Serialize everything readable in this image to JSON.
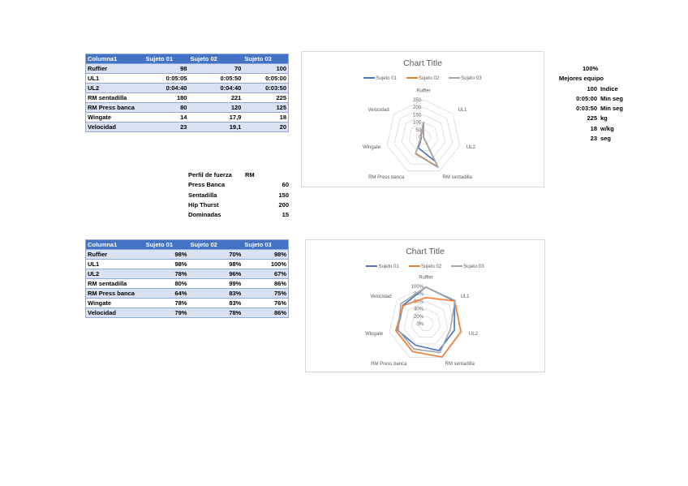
{
  "table1": {
    "headers": [
      "Columna1",
      "Sujeto 01",
      "Sujeto 02",
      "Sujeto 03"
    ],
    "rows": [
      [
        "Ruffier",
        "98",
        "70",
        "100"
      ],
      [
        "UL1",
        "0:05:05",
        "0:05:50",
        "0:05:00"
      ],
      [
        "UL2",
        "0:04:40",
        "0:04:40",
        "0:03:50"
      ],
      [
        "RM sentadilla",
        "180",
        "221",
        "225"
      ],
      [
        "RM Press banca",
        "80",
        "120",
        "125"
      ],
      [
        "Wingate",
        "14",
        "17,9",
        "18"
      ],
      [
        "Velocidad",
        "23",
        "19,1",
        "20"
      ]
    ]
  },
  "table2": {
    "headers": [
      "Columna1",
      "Sujeto 01",
      "Sujeto 02",
      "Sujeto 03"
    ],
    "rows": [
      [
        "Ruffier",
        "98%",
        "70%",
        "98%"
      ],
      [
        "UL1",
        "98%",
        "98%",
        "100%"
      ],
      [
        "UL2",
        "78%",
        "96%",
        "67%"
      ],
      [
        "RM sentadilla",
        "80%",
        "99%",
        "86%"
      ],
      [
        "RM Press banca",
        "64%",
        "83%",
        "75%"
      ],
      [
        "Wingate",
        "78%",
        "83%",
        "76%"
      ],
      [
        "Velocidad",
        "79%",
        "78%",
        "86%"
      ]
    ]
  },
  "perfil": {
    "header": "Perfil de fuerza",
    "header_rm": "RM",
    "rows": [
      [
        "Press Banca",
        "60"
      ],
      [
        "Sentadilla",
        "150"
      ],
      [
        "Hip Thurst",
        "200"
      ],
      [
        "Dominadas",
        "15"
      ]
    ]
  },
  "best": {
    "pct": "100%",
    "title": "Mejores equipo",
    "rows": [
      [
        "100",
        "Indice"
      ],
      [
        "0:05:00",
        "Min seg"
      ],
      [
        "0:03:50",
        "Min seg"
      ],
      [
        "225",
        "kg"
      ],
      [
        "18",
        "w/kg"
      ],
      [
        "23",
        "seg"
      ]
    ]
  },
  "chart_data": [
    {
      "type": "radar",
      "title": "Chart Title",
      "categories": [
        "Ruffier",
        "UL1",
        "UL2",
        "RM sentadilla",
        "RM Press banca",
        "Wingate",
        "Velocidad"
      ],
      "ticks": [
        "0",
        "50",
        "100",
        "150",
        "200",
        "250"
      ],
      "rmax": 250,
      "legend": "top",
      "series": [
        {
          "name": "Sujeto 01",
          "color": "#4472c4",
          "values": [
            98,
            0.0035,
            0.0032,
            180,
            80,
            14,
            23
          ]
        },
        {
          "name": "Sujeto 02",
          "color": "#ed7d31",
          "values": [
            70,
            0.004,
            0.0032,
            221,
            120,
            17.9,
            19.1
          ]
        },
        {
          "name": "Sujeto 03",
          "color": "#a5a5a5",
          "values": [
            100,
            0.0035,
            0.0027,
            225,
            125,
            18,
            20
          ]
        }
      ]
    },
    {
      "type": "radar",
      "title": "Chart Title",
      "categories": [
        "Ruffier",
        "UL1",
        "UL2",
        "RM sentadilla",
        "RM Press banca",
        "Wingate",
        "Velocidad"
      ],
      "ticks": [
        "0%",
        "20%",
        "40%",
        "60%",
        "80%",
        "100%"
      ],
      "rmax": 100,
      "legend": "top",
      "series": [
        {
          "name": "Sujeto 01",
          "color": "#4472c4",
          "values": [
            98,
            98,
            78,
            80,
            64,
            78,
            79
          ]
        },
        {
          "name": "Sujeto 02",
          "color": "#ed7d31",
          "values": [
            70,
            98,
            96,
            99,
            83,
            83,
            78
          ]
        },
        {
          "name": "Sujeto 03",
          "color": "#a5a5a5",
          "values": [
            98,
            100,
            67,
            86,
            75,
            76,
            86
          ]
        }
      ]
    }
  ]
}
